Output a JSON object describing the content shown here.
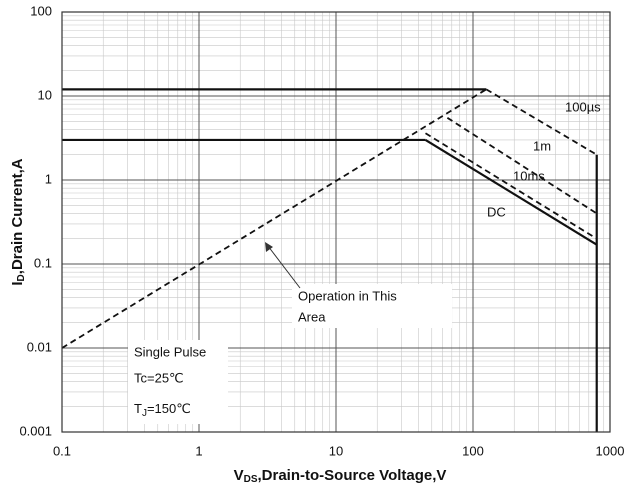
{
  "chart_data": {
    "type": "line",
    "x_label": {
      "main": "V",
      "sub": "DS",
      "rest": ",Drain-to-Source Voltage,V"
    },
    "y_label": {
      "main": "I",
      "sub": "D",
      "rest": ",Drain Current,A"
    },
    "xlog": true,
    "ylog": true,
    "grid": true,
    "minor_grid": true,
    "xlim": [
      0.1,
      1000
    ],
    "ylim": [
      0.001,
      100
    ],
    "xticks": [
      0.1,
      1,
      10,
      100,
      1000
    ],
    "yticks": [
      0.001,
      0.01,
      0.1,
      1,
      10,
      100
    ],
    "series": [
      {
        "color": "#111111",
        "dash": false,
        "x": [
          0.1,
          125
        ],
        "values": [
          12,
          12
        ]
      },
      {
        "color": "#111111",
        "dash": false,
        "x": [
          0.1,
          45
        ],
        "values": [
          3,
          3
        ]
      },
      {
        "name": "DC",
        "color": "#111111",
        "dash": false,
        "x": [
          45,
          800
        ],
        "values": [
          3,
          0.17
        ]
      },
      {
        "name": "10ms",
        "color": "#111111",
        "dash": true,
        "x": [
          45,
          800
        ],
        "values": [
          3.6,
          0.2
        ]
      },
      {
        "name": "1m",
        "color": "#111111",
        "dash": true,
        "x": [
          65,
          800
        ],
        "values": [
          5.5,
          0.4
        ]
      },
      {
        "name": "100µs",
        "color": "#111111",
        "dash": true,
        "x": [
          125,
          800
        ],
        "values": [
          12,
          2
        ]
      },
      {
        "color": "#111111",
        "dash": true,
        "x": [
          0.1,
          125
        ],
        "values": [
          0.01,
          12
        ]
      },
      {
        "color": "#111111",
        "dash": false,
        "x": [
          800,
          800
        ],
        "values": [
          2,
          0.001
        ]
      }
    ],
    "annotations": {
      "area": [
        "Operation in This",
        "Area"
      ],
      "pulse": "Single Pulse",
      "tc": "Tc=25℃",
      "tj": {
        "main": "T",
        "sub": "J",
        "rest": "=150℃"
      }
    }
  }
}
